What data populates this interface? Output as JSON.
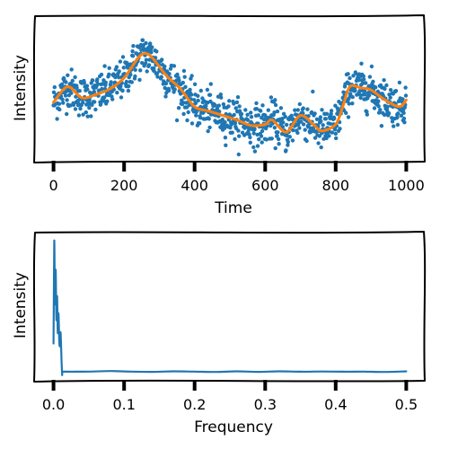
{
  "chart_data": [
    {
      "type": "scatter",
      "title": "",
      "xlabel": "Time",
      "ylabel": "Intensity",
      "xlim": [
        -50,
        1050
      ],
      "xticks": [
        "0",
        "200",
        "400",
        "600",
        "800",
        "1000"
      ],
      "xtick_values": [
        0,
        200,
        400,
        600,
        800,
        1000
      ],
      "ylim": [
        -2.6,
        3.8
      ],
      "yticks": [],
      "grid": false,
      "series": [
        {
          "kind": "scatter",
          "color": "#1f77b4",
          "n_points": 1000,
          "noise_sd": 0.45,
          "trend_x": [
            0,
            40,
            80,
            120,
            160,
            200,
            240,
            260,
            280,
            320,
            360,
            400,
            440,
            480,
            520,
            560,
            600,
            620,
            660,
            700,
            740,
            760,
            800,
            820,
            840,
            870,
            900,
            940,
            980,
            1000
          ],
          "trend_y": [
            0.0,
            0.7,
            0.2,
            0.35,
            0.6,
            1.1,
            2.0,
            2.2,
            2.0,
            1.2,
            0.6,
            -0.2,
            -0.4,
            -0.6,
            -0.8,
            -1.05,
            -1.0,
            -0.8,
            -1.35,
            -0.6,
            -1.05,
            -1.3,
            -1.0,
            -0.2,
            0.7,
            0.65,
            0.55,
            0.1,
            -0.2,
            0.1
          ]
        },
        {
          "kind": "line",
          "color": "#ff7f0e",
          "x": [
            0,
            40,
            80,
            120,
            160,
            200,
            240,
            260,
            280,
            320,
            360,
            400,
            440,
            480,
            520,
            560,
            600,
            620,
            660,
            700,
            740,
            760,
            800,
            820,
            840,
            870,
            900,
            940,
            980,
            1000
          ],
          "y": [
            0.0,
            0.7,
            0.2,
            0.35,
            0.6,
            1.1,
            2.0,
            2.2,
            2.0,
            1.2,
            0.6,
            -0.2,
            -0.4,
            -0.6,
            -0.8,
            -1.05,
            -1.0,
            -0.8,
            -1.35,
            -0.6,
            -1.05,
            -1.3,
            -1.0,
            -0.2,
            0.7,
            0.65,
            0.55,
            0.1,
            -0.2,
            0.1
          ]
        }
      ]
    },
    {
      "type": "line",
      "title": "",
      "xlabel": "Frequency",
      "ylabel": "Intensity",
      "xlim": [
        -0.025,
        0.525
      ],
      "xticks": [
        "0.0",
        "0.1",
        "0.2",
        "0.3",
        "0.4",
        "0.5"
      ],
      "xtick_values": [
        0.0,
        0.1,
        0.2,
        0.3,
        0.4,
        0.5
      ],
      "ylim": [
        -0.05,
        1.05
      ],
      "yticks": [],
      "grid": false,
      "series": [
        {
          "kind": "line",
          "color": "#1f77b4",
          "x": [
            0.0,
            0.001,
            0.002,
            0.003,
            0.004,
            0.005,
            0.006,
            0.007,
            0.008,
            0.009,
            0.01,
            0.012,
            0.014,
            0.03,
            0.05,
            0.08,
            0.11,
            0.14,
            0.17,
            0.2,
            0.23,
            0.26,
            0.29,
            0.32,
            0.35,
            0.38,
            0.41,
            0.44,
            0.47,
            0.5
          ],
          "y": [
            0.22,
            1.0,
            0.52,
            0.78,
            0.4,
            0.58,
            0.3,
            0.45,
            0.25,
            0.2,
            0.3,
            0.0,
            0.005,
            0.005,
            0.006,
            0.01,
            0.006,
            0.004,
            0.008,
            0.006,
            0.003,
            0.008,
            0.004,
            0.008,
            0.005,
            0.007,
            0.005,
            0.006,
            0.003,
            0.008
          ]
        }
      ]
    }
  ]
}
